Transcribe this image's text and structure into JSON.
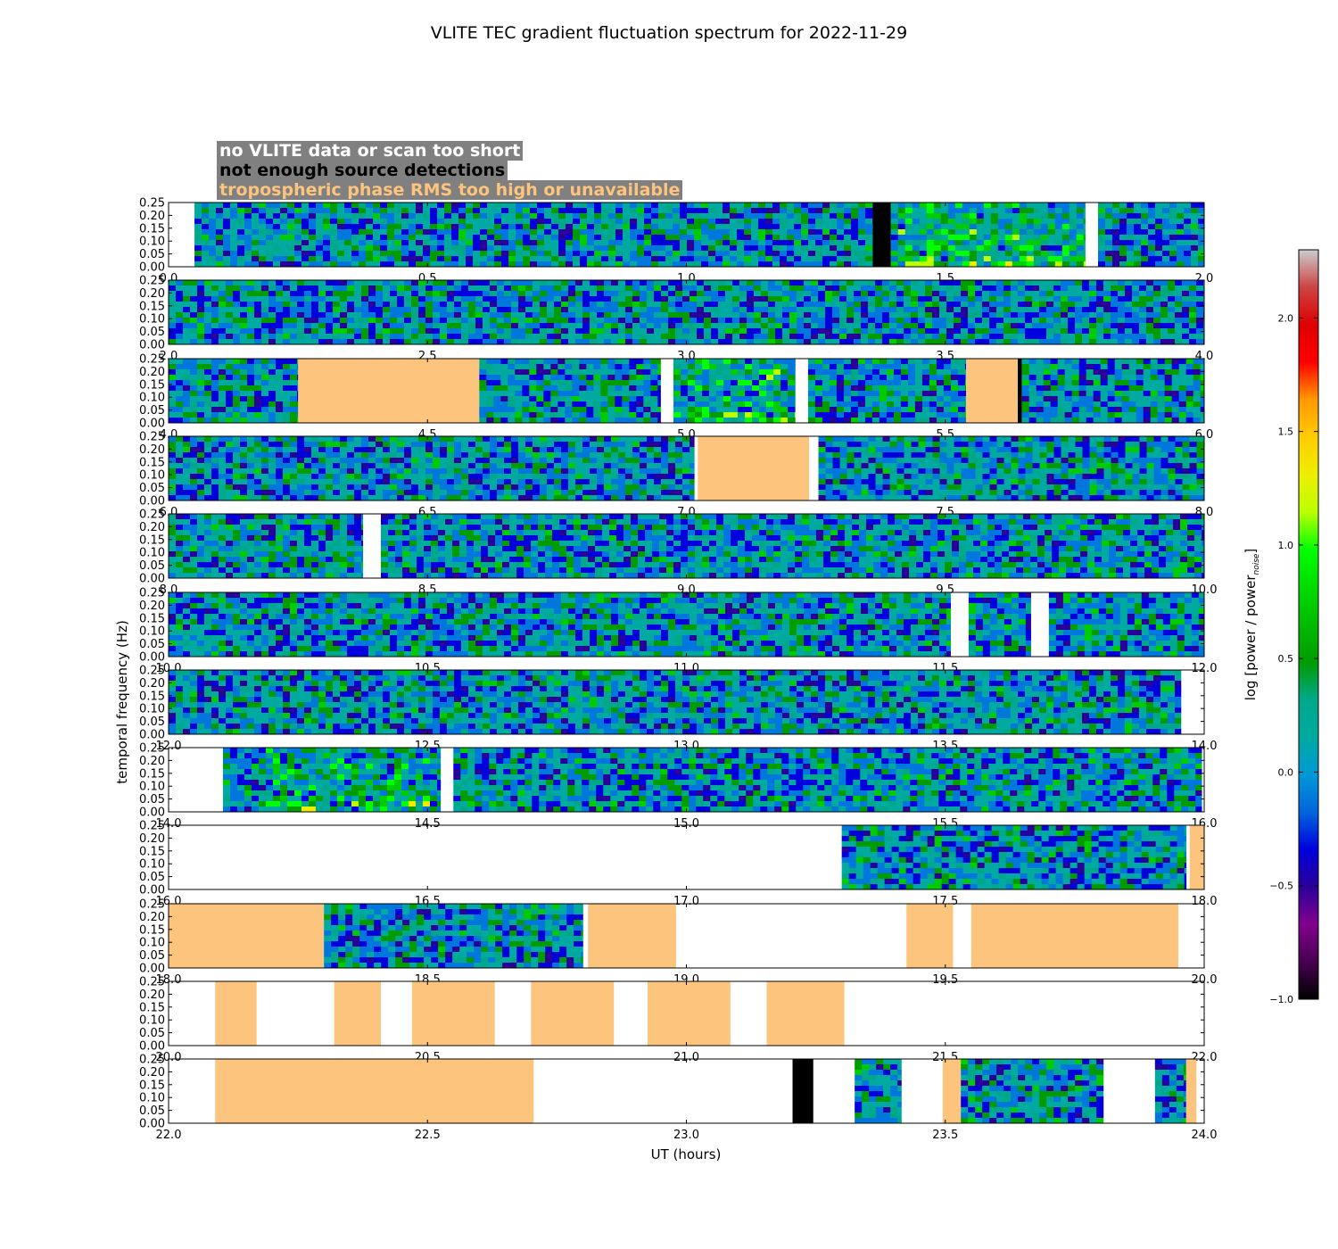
{
  "chart_data": {
    "type": "heatmap",
    "title": "VLITE TEC gradient fluctuation spectrum for 2022-11-29",
    "xlabel": "UT (hours)",
    "ylabel": "temporal frequency (Hz)",
    "ylim": [
      0,
      0.25
    ],
    "yticks": [
      "0.00",
      "0.05",
      "0.10",
      "0.15",
      "0.20",
      "0.25"
    ],
    "colorbar": {
      "label": "log [power / power",
      "label_sub": "noise",
      "label_end": "]",
      "range": [
        -1.0,
        2.3
      ],
      "ticks": [
        "−1.0",
        "−0.5",
        "0.0",
        "0.5",
        "1.0",
        "1.5",
        "2.0"
      ],
      "tick_values": [
        -1.0,
        -0.5,
        0.0,
        0.5,
        1.0,
        1.5,
        2.0
      ],
      "colormap": "nipy_spectral"
    },
    "legend": [
      {
        "label": "no VLITE data or scan too short",
        "color": "#ffffff"
      },
      {
        "label": "not enough source detections",
        "color": "#000000"
      },
      {
        "label": "tropospheric phase RMS too high or unavailable",
        "color": "#fdc47d"
      }
    ],
    "panels": [
      {
        "range": [
          0.0,
          2.0
        ],
        "ticks": [
          "0.0",
          "0.5",
          "1.0",
          "1.5",
          "2.0"
        ],
        "segments": [
          [
            "nodata",
            0.0,
            0.05
          ],
          [
            "data",
            0.05,
            1.36
          ],
          [
            "nodet",
            1.36,
            1.395
          ],
          [
            "data",
            1.395,
            1.77
          ],
          [
            "nodata",
            1.77,
            1.795
          ],
          [
            "data",
            1.795,
            2.0
          ]
        ]
      },
      {
        "range": [
          2.0,
          4.0
        ],
        "ticks": [
          "2.0",
          "2.5",
          "3.0",
          "3.5",
          "4.0"
        ],
        "segments": [
          [
            "data",
            2.0,
            4.0
          ]
        ]
      },
      {
        "range": [
          4.0,
          6.0
        ],
        "ticks": [
          "4.0",
          "4.5",
          "5.0",
          "5.5",
          "6.0"
        ],
        "segments": [
          [
            "data",
            4.0,
            4.25
          ],
          [
            "tropo",
            4.25,
            4.6
          ],
          [
            "data",
            4.6,
            4.95
          ],
          [
            "nodata",
            4.95,
            4.975
          ],
          [
            "data",
            4.975,
            5.21
          ],
          [
            "nodata",
            5.21,
            5.235
          ],
          [
            "data",
            5.235,
            5.54
          ],
          [
            "tropo",
            5.54,
            5.64
          ],
          [
            "nodet",
            5.64,
            5.648
          ],
          [
            "data",
            5.648,
            6.0
          ]
        ]
      },
      {
        "range": [
          6.0,
          8.0
        ],
        "ticks": [
          "6.0",
          "6.5",
          "7.0",
          "7.5",
          "8.0"
        ],
        "segments": [
          [
            "data",
            6.0,
            7.015
          ],
          [
            "nodata",
            7.015,
            7.022
          ],
          [
            "tropo",
            7.022,
            7.237
          ],
          [
            "nodata",
            7.237,
            7.255
          ],
          [
            "data",
            7.255,
            8.0
          ]
        ]
      },
      {
        "range": [
          8.0,
          10.0
        ],
        "ticks": [
          "8.0",
          "8.5",
          "9.0",
          "9.5",
          "10.0"
        ],
        "segments": [
          [
            "data",
            8.0,
            8.375
          ],
          [
            "nodata",
            8.375,
            8.41
          ],
          [
            "data",
            8.41,
            10.0
          ]
        ]
      },
      {
        "range": [
          10.0,
          12.0
        ],
        "ticks": [
          "10.0",
          "10.5",
          "11.0",
          "11.5",
          "12.0"
        ],
        "segments": [
          [
            "data",
            10.0,
            11.51
          ],
          [
            "nodata",
            11.51,
            11.545
          ],
          [
            "data",
            11.545,
            11.665
          ],
          [
            "nodata",
            11.665,
            11.7
          ],
          [
            "data",
            11.7,
            12.0
          ]
        ]
      },
      {
        "range": [
          12.0,
          14.0
        ],
        "ticks": [
          "12.0",
          "12.5",
          "13.0",
          "13.5",
          "14.0"
        ],
        "segments": [
          [
            "data",
            12.0,
            13.955
          ],
          [
            "nodata",
            13.955,
            14.0
          ]
        ]
      },
      {
        "range": [
          14.0,
          16.0
        ],
        "ticks": [
          "14.0",
          "14.5",
          "15.0",
          "15.5",
          "16.0"
        ],
        "segments": [
          [
            "nodata",
            14.0,
            14.105
          ],
          [
            "data",
            14.105,
            14.525
          ],
          [
            "nodata",
            14.525,
            14.55
          ],
          [
            "data",
            14.55,
            15.995
          ],
          [
            "nodata",
            15.995,
            16.0
          ]
        ]
      },
      {
        "range": [
          16.0,
          18.0
        ],
        "ticks": [
          "16.0",
          "16.5",
          "17.0",
          "17.5",
          "18.0"
        ],
        "segments": [
          [
            "nodata",
            16.0,
            17.3
          ],
          [
            "data",
            17.3,
            17.965
          ],
          [
            "nodata",
            17.965,
            17.972
          ],
          [
            "tropo",
            17.972,
            18.0
          ]
        ]
      },
      {
        "range": [
          18.0,
          20.0
        ],
        "ticks": [
          "18.0",
          "18.5",
          "19.0",
          "19.5",
          "20.0"
        ],
        "segments": [
          [
            "tropo",
            18.0,
            18.3
          ],
          [
            "data",
            18.3,
            18.8
          ],
          [
            "nodata",
            18.8,
            18.81
          ],
          [
            "tropo",
            18.81,
            18.98
          ],
          [
            "nodata",
            18.98,
            19.425
          ],
          [
            "tropo",
            19.425,
            19.515
          ],
          [
            "nodata",
            19.515,
            19.55
          ],
          [
            "tropo",
            19.55,
            19.95
          ],
          [
            "nodata",
            19.95,
            20.0
          ]
        ]
      },
      {
        "range": [
          20.0,
          22.0
        ],
        "ticks": [
          "20.0",
          "20.5",
          "21.0",
          "21.5",
          "22.0"
        ],
        "segments": [
          [
            "nodata",
            20.0,
            20.09
          ],
          [
            "tropo",
            20.09,
            20.17
          ],
          [
            "nodata",
            20.17,
            20.32
          ],
          [
            "tropo",
            20.32,
            20.41
          ],
          [
            "nodata",
            20.41,
            20.47
          ],
          [
            "tropo",
            20.47,
            20.63
          ],
          [
            "nodata",
            20.63,
            20.7
          ],
          [
            "tropo",
            20.7,
            20.86
          ],
          [
            "nodata",
            20.86,
            20.925
          ],
          [
            "tropo",
            20.925,
            21.085
          ],
          [
            "nodata",
            21.085,
            21.155
          ],
          [
            "tropo",
            21.155,
            21.305
          ],
          [
            "nodata",
            21.305,
            22.0
          ]
        ]
      },
      {
        "range": [
          22.0,
          24.0
        ],
        "ticks": [
          "22.0",
          "22.5",
          "23.0",
          "23.5",
          "24.0"
        ],
        "segments": [
          [
            "nodata",
            22.0,
            22.09
          ],
          [
            "tropo",
            22.09,
            22.705
          ],
          [
            "nodata",
            22.705,
            23.205
          ],
          [
            "nodet",
            23.205,
            23.245
          ],
          [
            "nodata",
            23.245,
            23.325
          ],
          [
            "data",
            23.325,
            23.415
          ],
          [
            "nodata",
            23.415,
            23.495
          ],
          [
            "tropo",
            23.495,
            23.53
          ],
          [
            "data",
            23.53,
            23.805
          ],
          [
            "nodata",
            23.805,
            23.905
          ],
          [
            "data",
            23.905,
            23.965
          ],
          [
            "tropo",
            23.965,
            23.985
          ],
          [
            "nodata",
            23.985,
            24.0
          ]
        ]
      }
    ],
    "hotspots": [
      {
        "panel": 0,
        "x": [
          1.4,
          1.77
        ],
        "level": 0.9
      },
      {
        "panel": 2,
        "x": [
          4.975,
          5.21
        ],
        "level": 0.85
      },
      {
        "panel": 7,
        "x": [
          14.18,
          14.5
        ],
        "level": 0.7
      }
    ]
  }
}
